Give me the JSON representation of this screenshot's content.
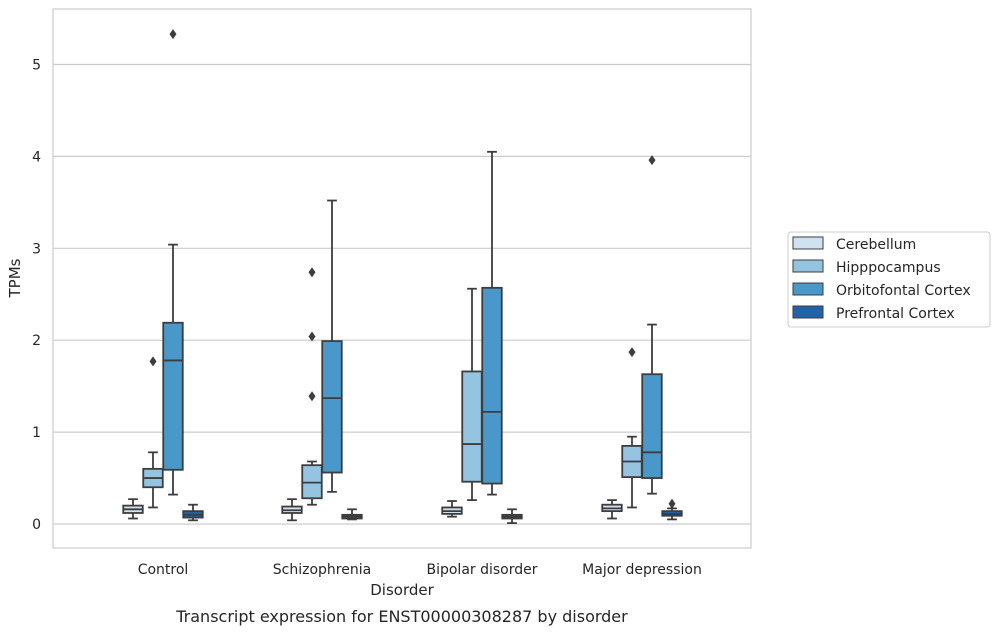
{
  "chart_data": {
    "type": "box",
    "caption": "Transcript expression for ENST00000308287 by disorder",
    "xlabel": "Disorder",
    "ylabel": "TPMs",
    "ylim": [
      -0.25,
      5.6
    ],
    "yticks": [
      0,
      1,
      2,
      3,
      4,
      5
    ],
    "grid": true,
    "legend_position": "right",
    "categories": [
      "Control",
      "Schizophrenia",
      "Bipolar disorder",
      "Major depression"
    ],
    "series": [
      {
        "name": "Cerebellum",
        "color": "#d0e1f2",
        "boxes": [
          {
            "whisker_low": 0.06,
            "q1": 0.12,
            "median": 0.16,
            "q3": 0.2,
            "whisker_high": 0.27,
            "outliers": []
          },
          {
            "whisker_low": 0.04,
            "q1": 0.12,
            "median": 0.15,
            "q3": 0.19,
            "whisker_high": 0.27,
            "outliers": []
          },
          {
            "whisker_low": 0.08,
            "q1": 0.11,
            "median": 0.14,
            "q3": 0.18,
            "whisker_high": 0.25,
            "outliers": []
          },
          {
            "whisker_low": 0.06,
            "q1": 0.14,
            "median": 0.17,
            "q3": 0.21,
            "whisker_high": 0.26,
            "outliers": []
          }
        ]
      },
      {
        "name": "Hipppocampus",
        "color": "#94c4df",
        "boxes": [
          {
            "whisker_low": 0.18,
            "q1": 0.4,
            "median": 0.5,
            "q3": 0.6,
            "whisker_high": 0.78,
            "outliers": [
              1.77
            ]
          },
          {
            "whisker_low": 0.21,
            "q1": 0.28,
            "median": 0.45,
            "q3": 0.64,
            "whisker_high": 0.68,
            "outliers": [
              1.39,
              2.04,
              2.74
            ]
          },
          {
            "whisker_low": 0.26,
            "q1": 0.46,
            "median": 0.87,
            "q3": 1.66,
            "whisker_high": 2.56,
            "outliers": []
          },
          {
            "whisker_low": 0.18,
            "q1": 0.51,
            "median": 0.68,
            "q3": 0.85,
            "whisker_high": 0.95,
            "outliers": [
              1.87
            ]
          }
        ]
      },
      {
        "name": "Orbitofontal Cortex",
        "color": "#4a98c9",
        "boxes": [
          {
            "whisker_low": 0.32,
            "q1": 0.59,
            "median": 1.78,
            "q3": 2.19,
            "whisker_high": 3.04,
            "outliers": [
              5.33
            ]
          },
          {
            "whisker_low": 0.35,
            "q1": 0.56,
            "median": 1.37,
            "q3": 1.99,
            "whisker_high": 3.52,
            "outliers": []
          },
          {
            "whisker_low": 0.32,
            "q1": 0.44,
            "median": 1.22,
            "q3": 2.57,
            "whisker_high": 4.05,
            "outliers": []
          },
          {
            "whisker_low": 0.33,
            "q1": 0.5,
            "median": 0.78,
            "q3": 1.63,
            "whisker_high": 2.17,
            "outliers": [
              3.96
            ]
          }
        ]
      },
      {
        "name": "Prefrontal Cortex",
        "color": "#2163aa",
        "boxes": [
          {
            "whisker_low": 0.04,
            "q1": 0.07,
            "median": 0.1,
            "q3": 0.14,
            "whisker_high": 0.21,
            "outliers": []
          },
          {
            "whisker_low": 0.05,
            "q1": 0.06,
            "median": 0.08,
            "q3": 0.1,
            "whisker_high": 0.16,
            "outliers": []
          },
          {
            "whisker_low": 0.01,
            "q1": 0.06,
            "median": 0.08,
            "q3": 0.1,
            "whisker_high": 0.16,
            "outliers": []
          },
          {
            "whisker_low": 0.05,
            "q1": 0.09,
            "median": 0.11,
            "q3": 0.14,
            "whisker_high": 0.17,
            "outliers": [
              0.22
            ]
          }
        ]
      }
    ]
  }
}
